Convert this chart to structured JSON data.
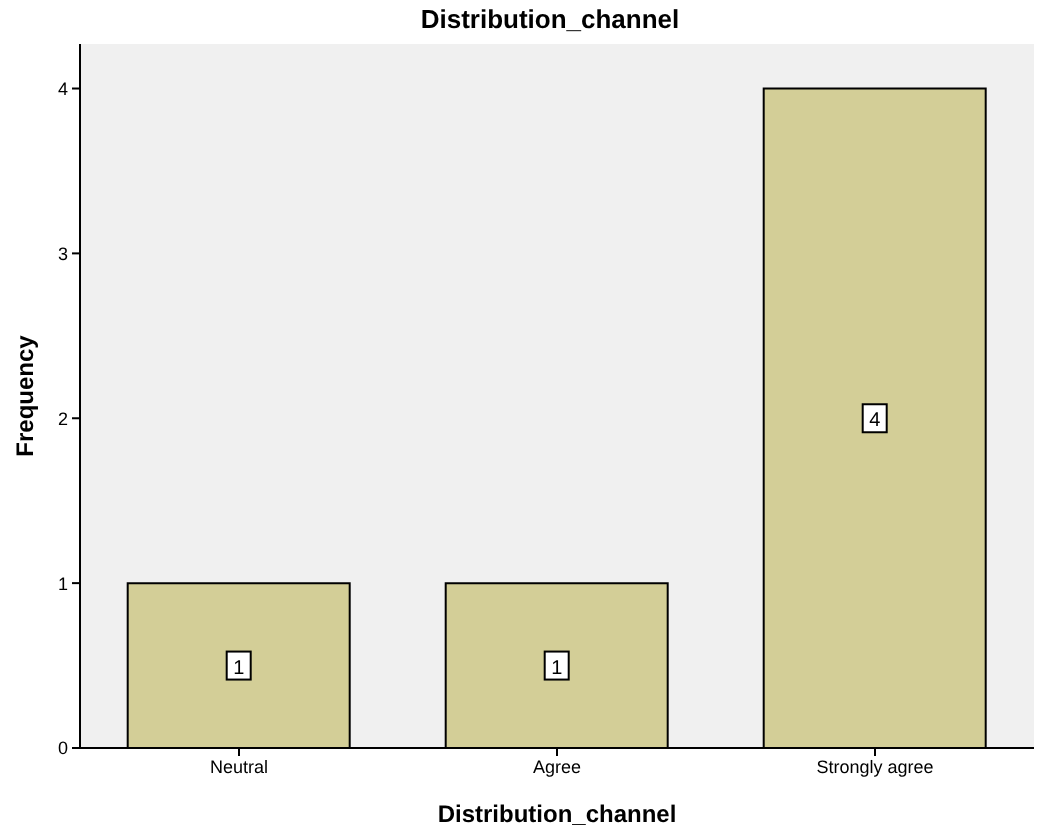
{
  "chart_data": {
    "type": "bar",
    "title": "Distribution_channel",
    "xlabel": "Distribution_channel",
    "ylabel": "Frequency",
    "categories": [
      "Neutral",
      "Agree",
      "Strongly agree"
    ],
    "values": [
      1,
      1,
      4
    ],
    "color": "#d3ce97",
    "ylim": [
      0,
      4.27
    ],
    "yticks": [
      0,
      1,
      2,
      3,
      4
    ],
    "grid": false,
    "data_labels": true
  }
}
